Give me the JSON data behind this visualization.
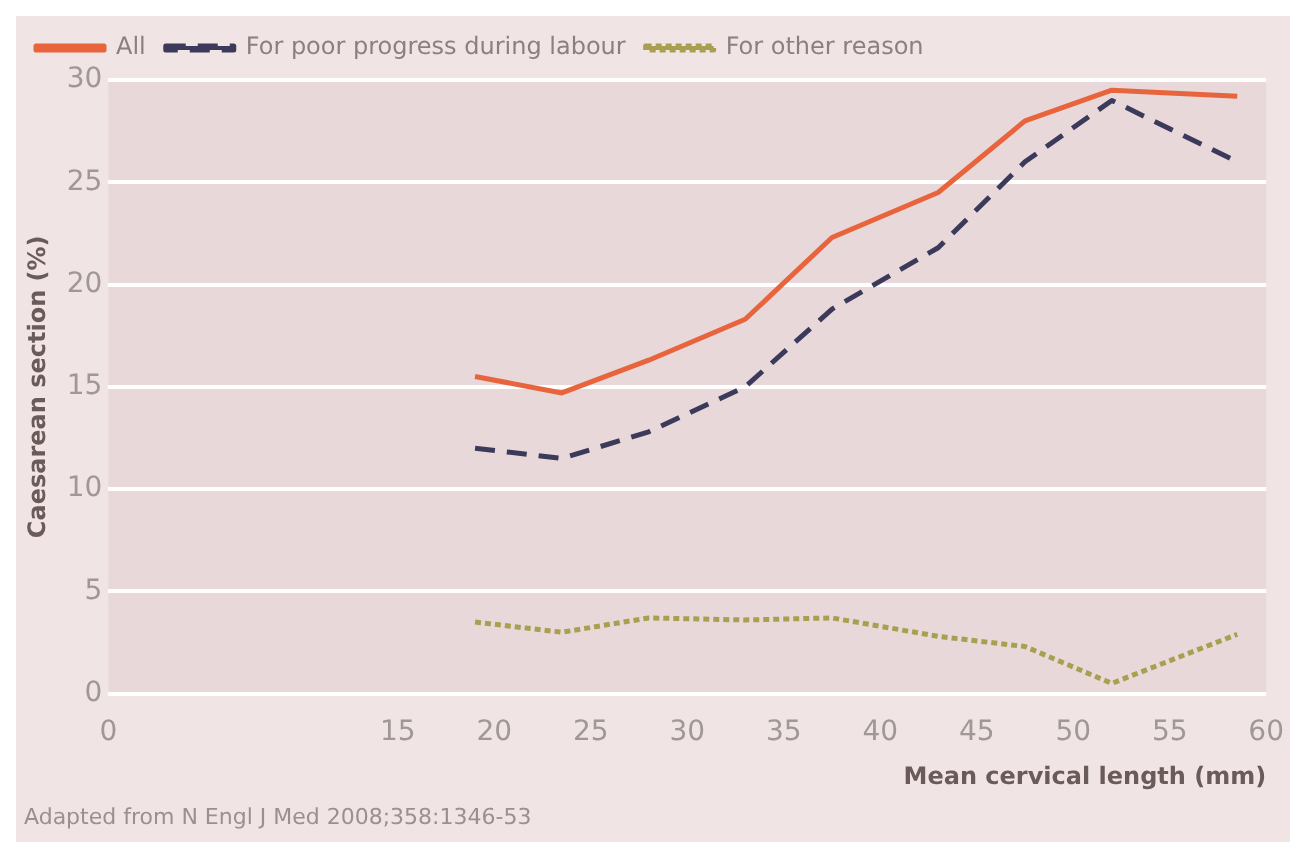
{
  "chart_data": {
    "type": "line",
    "xlabel": "Mean cervical length (mm)",
    "ylabel": "Caesarean section (%)",
    "x": [
      19,
      23.5,
      28,
      33,
      37.5,
      43,
      47.5,
      52,
      58.5
    ],
    "series": [
      {
        "name": "All",
        "color": "#e8643c",
        "line_style": "solid",
        "values": [
          15.5,
          14.7,
          16.3,
          18.3,
          22.3,
          24.5,
          28,
          29.5,
          29.2
        ]
      },
      {
        "name": "For poor progress during labour",
        "color": "#3c3a5a",
        "line_style": "dashed",
        "values": [
          12,
          11.5,
          12.8,
          15,
          18.8,
          21.8,
          26,
          29,
          26
        ]
      },
      {
        "name": "For other reason",
        "color": "#a8a050",
        "line_style": "dotted",
        "values": [
          3.5,
          3,
          3.7,
          3.6,
          3.7,
          2.8,
          2.3,
          0.5,
          2.9
        ]
      }
    ],
    "xlim": [
      0,
      60
    ],
    "xticks": [
      0,
      15,
      20,
      25,
      30,
      35,
      40,
      45,
      50,
      55,
      60
    ],
    "ylim": [
      0,
      30
    ],
    "yticks": [
      0,
      5,
      10,
      15,
      20,
      25,
      30
    ],
    "grid": "y",
    "legend": "top left",
    "marker": "none",
    "annotations": [
      "Adapted from N Engl J Med 2008;358:1346-53"
    ]
  }
}
